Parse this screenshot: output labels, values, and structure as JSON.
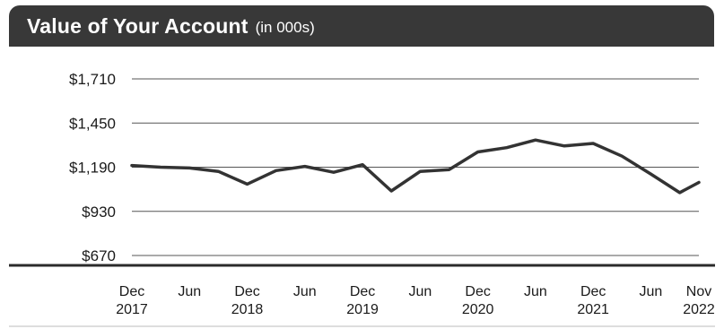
{
  "header": {
    "title": "Value of Your Account",
    "subtitle": "(in 000s)"
  },
  "chart_data": {
    "type": "line",
    "title": "Value of Your Account",
    "subtitle": "(in 000s)",
    "xlabel": "",
    "ylabel": "",
    "ylim": [
      670,
      1710
    ],
    "yticks": [
      1710,
      1450,
      1190,
      930,
      670
    ],
    "ytick_labels": [
      "$1,710",
      "$1,450",
      "$1,190",
      "$930",
      "$670"
    ],
    "xticks": [
      {
        "month": 0,
        "line1": "Dec",
        "line2": "2017"
      },
      {
        "month": 6,
        "line1": "Jun",
        "line2": ""
      },
      {
        "month": 12,
        "line1": "Dec",
        "line2": "2018"
      },
      {
        "month": 18,
        "line1": "Jun",
        "line2": ""
      },
      {
        "month": 24,
        "line1": "Dec",
        "line2": "2019"
      },
      {
        "month": 30,
        "line1": "Jun",
        "line2": ""
      },
      {
        "month": 36,
        "line1": "Dec",
        "line2": "2020"
      },
      {
        "month": 42,
        "line1": "Jun",
        "line2": ""
      },
      {
        "month": 48,
        "line1": "Dec",
        "line2": "2021"
      },
      {
        "month": 54,
        "line1": "Jun",
        "line2": ""
      },
      {
        "month": 59,
        "line1": "Nov",
        "line2": "2022"
      }
    ],
    "x_month_range": [
      0,
      59
    ],
    "grid": "horizontal",
    "series": [
      {
        "x": [
          0,
          3,
          6,
          9,
          12,
          15,
          18,
          21,
          24,
          27,
          30,
          33,
          36,
          39,
          42,
          45,
          48,
          51,
          54,
          57,
          59
        ],
        "values": [
          1200,
          1190,
          1185,
          1165,
          1090,
          1170,
          1195,
          1160,
          1205,
          1050,
          1165,
          1175,
          1280,
          1305,
          1350,
          1315,
          1330,
          1255,
          1150,
          1040,
          1100
        ],
        "color": "#333333"
      }
    ]
  }
}
